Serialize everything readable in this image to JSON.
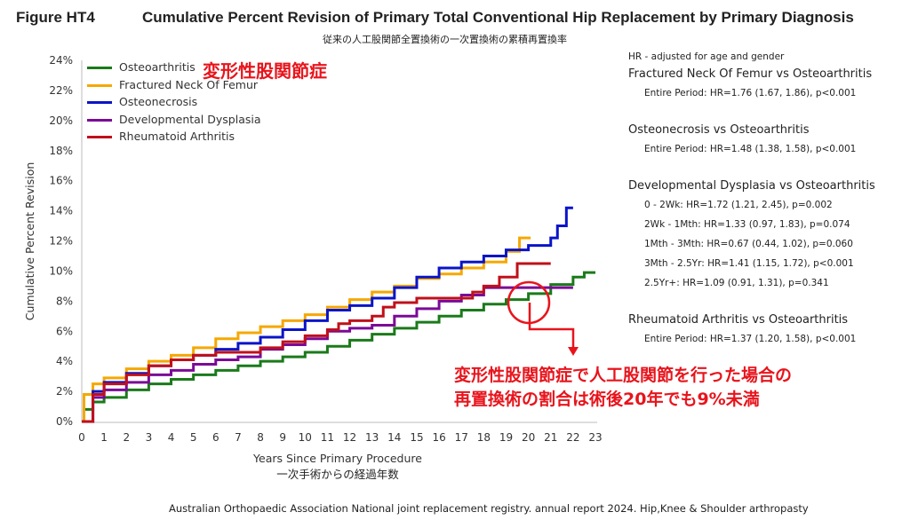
{
  "figure_label": "Figure HT4",
  "title": "Cumulative Percent Revision of Primary Total Conventional Hip Replacement by Primary Diagnosis",
  "subtitle_jp": "従来の人工股関節全置換術の一次置換術の累積再置換率",
  "legend_annotation_jp": "変形性股関節症",
  "hr_panel": {
    "heading": "HR - adjusted for age and gender",
    "groups": [
      {
        "title": "Fractured Neck Of Femur vs Osteoarthritis",
        "lines": [
          "Entire Period: HR=1.76 (1.67, 1.86), p<0.001"
        ]
      },
      {
        "title": "Osteonecrosis vs Osteoarthritis",
        "lines": [
          "Entire Period: HR=1.48 (1.38, 1.58), p<0.001"
        ]
      },
      {
        "title": "Developmental Dysplasia vs Osteoarthritis",
        "lines": [
          "0 - 2Wk: HR=1.72 (1.21, 2.45), p=0.002",
          "2Wk - 1Mth: HR=1.33 (0.97, 1.83), p=0.074",
          "1Mth - 3Mth: HR=0.67 (0.44, 1.02), p=0.060",
          "3Mth - 2.5Yr: HR=1.41 (1.15, 1.72), p<0.001",
          "2.5Yr+: HR=1.09 (0.91, 1.31), p=0.341"
        ]
      },
      {
        "title": "Rheumatoid Arthritis vs Osteoarthritis",
        "lines": [
          "Entire Period: HR=1.37 (1.20, 1.58), p<0.001"
        ]
      }
    ]
  },
  "callout_jp": [
    "変形性股関節症で人工股関節を行った場合の",
    "再置換術の割合は術後20年でも9%未満"
  ],
  "xlabel_jp": "一次手術からの経過年数",
  "footer": "Australian Orthopaedic Association National joint replacement registry. annual report 2024. Hip,Knee & Shoulder arthropasty",
  "annotation_color": "#e8141c",
  "chart_data": {
    "type": "line",
    "step": true,
    "xlabel": "Years Since Primary Procedure",
    "ylabel": "Cumulative Percent Revision",
    "xlim": [
      0,
      23
    ],
    "ylim": [
      0,
      24
    ],
    "xticks": [
      "0",
      "1",
      "2",
      "3",
      "4",
      "5",
      "6",
      "7",
      "8",
      "9",
      "10",
      "11",
      "12",
      "13",
      "14",
      "15",
      "16",
      "17",
      "18",
      "19",
      "20",
      "21",
      "22",
      "23"
    ],
    "yticks": [
      "0%",
      "2%",
      "4%",
      "6%",
      "8%",
      "10%",
      "12%",
      "14%",
      "16%",
      "18%",
      "20%",
      "22%",
      "24%"
    ],
    "grid": false,
    "legend_position": "top-left",
    "series": [
      {
        "name": "Osteoarthritis",
        "color": "#1a7a1a",
        "points": [
          [
            0,
            0
          ],
          [
            0.1,
            0.8
          ],
          [
            0.5,
            1.3
          ],
          [
            1,
            1.6
          ],
          [
            2,
            2.1
          ],
          [
            3,
            2.5
          ],
          [
            4,
            2.8
          ],
          [
            5,
            3.1
          ],
          [
            6,
            3.4
          ],
          [
            7,
            3.7
          ],
          [
            8,
            4.0
          ],
          [
            9,
            4.3
          ],
          [
            10,
            4.6
          ],
          [
            11,
            5.0
          ],
          [
            12,
            5.4
          ],
          [
            13,
            5.8
          ],
          [
            14,
            6.2
          ],
          [
            15,
            6.6
          ],
          [
            16,
            7.0
          ],
          [
            17,
            7.4
          ],
          [
            18,
            7.8
          ],
          [
            19,
            8.1
          ],
          [
            20,
            8.5
          ],
          [
            21,
            9.1
          ],
          [
            22,
            9.6
          ],
          [
            22.5,
            9.9
          ],
          [
            23,
            9.9
          ]
        ]
      },
      {
        "name": "Fractured Neck Of Femur",
        "color": "#f5a800",
        "points": [
          [
            0,
            0
          ],
          [
            0.1,
            1.8
          ],
          [
            0.5,
            2.5
          ],
          [
            1,
            2.9
          ],
          [
            2,
            3.5
          ],
          [
            3,
            4.0
          ],
          [
            4,
            4.4
          ],
          [
            5,
            4.9
          ],
          [
            6,
            5.5
          ],
          [
            7,
            5.9
          ],
          [
            8,
            6.3
          ],
          [
            9,
            6.7
          ],
          [
            10,
            7.1
          ],
          [
            11,
            7.6
          ],
          [
            12,
            8.1
          ],
          [
            13,
            8.6
          ],
          [
            14,
            9.0
          ],
          [
            15,
            9.5
          ],
          [
            16,
            9.8
          ],
          [
            17,
            10.2
          ],
          [
            18,
            10.6
          ],
          [
            19,
            11.3
          ],
          [
            19.6,
            12.2
          ],
          [
            20.1,
            12.2
          ]
        ]
      },
      {
        "name": "Osteonecrosis",
        "color": "#0a14c8",
        "points": [
          [
            0,
            0
          ],
          [
            0.5,
            2.0
          ],
          [
            1,
            2.6
          ],
          [
            2,
            3.2
          ],
          [
            3,
            3.7
          ],
          [
            4,
            4.1
          ],
          [
            5,
            4.4
          ],
          [
            6,
            4.8
          ],
          [
            7,
            5.2
          ],
          [
            8,
            5.6
          ],
          [
            9,
            6.1
          ],
          [
            10,
            6.7
          ],
          [
            11,
            7.4
          ],
          [
            12,
            7.7
          ],
          [
            13,
            8.2
          ],
          [
            14,
            8.9
          ],
          [
            15,
            9.6
          ],
          [
            16,
            10.2
          ],
          [
            17,
            10.6
          ],
          [
            18,
            11.0
          ],
          [
            19,
            11.4
          ],
          [
            20,
            11.7
          ],
          [
            21,
            12.2
          ],
          [
            21.3,
            13.0
          ],
          [
            21.7,
            14.2
          ],
          [
            22,
            14.2
          ]
        ]
      },
      {
        "name": "Developmental Dysplasia",
        "color": "#7a0a96",
        "points": [
          [
            0,
            0
          ],
          [
            0.5,
            1.6
          ],
          [
            1,
            2.1
          ],
          [
            2,
            2.6
          ],
          [
            3,
            3.1
          ],
          [
            4,
            3.4
          ],
          [
            5,
            3.8
          ],
          [
            6,
            4.1
          ],
          [
            7,
            4.3
          ],
          [
            8,
            4.8
          ],
          [
            9,
            5.1
          ],
          [
            10,
            5.5
          ],
          [
            11,
            6.0
          ],
          [
            12,
            6.2
          ],
          [
            13,
            6.4
          ],
          [
            14,
            7.0
          ],
          [
            15,
            7.5
          ],
          [
            16,
            8.0
          ],
          [
            17,
            8.4
          ],
          [
            18,
            8.9
          ],
          [
            22,
            8.9
          ]
        ]
      },
      {
        "name": "Rheumatoid Arthritis",
        "color": "#c0101a",
        "points": [
          [
            0,
            0
          ],
          [
            0.5,
            1.8
          ],
          [
            1,
            2.5
          ],
          [
            2,
            3.1
          ],
          [
            3,
            3.7
          ],
          [
            4,
            4.1
          ],
          [
            5,
            4.4
          ],
          [
            6,
            4.6
          ],
          [
            7,
            4.6
          ],
          [
            8,
            4.9
          ],
          [
            9,
            5.3
          ],
          [
            10,
            5.7
          ],
          [
            11,
            6.1
          ],
          [
            11.5,
            6.5
          ],
          [
            12,
            6.7
          ],
          [
            13,
            7.0
          ],
          [
            13.5,
            7.6
          ],
          [
            14,
            7.9
          ],
          [
            15,
            8.2
          ],
          [
            17,
            8.2
          ],
          [
            17.5,
            8.6
          ],
          [
            18,
            9.0
          ],
          [
            18.7,
            9.6
          ],
          [
            19.5,
            10.5
          ],
          [
            21,
            10.5
          ]
        ]
      }
    ]
  }
}
